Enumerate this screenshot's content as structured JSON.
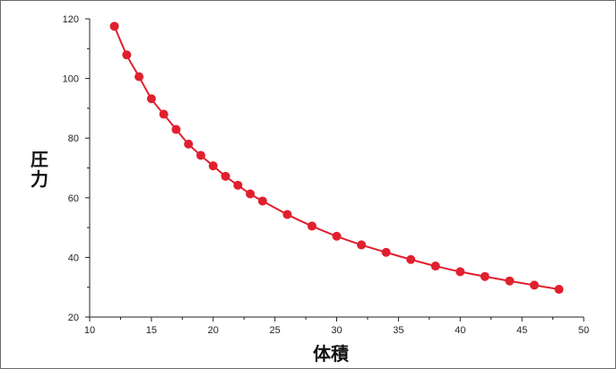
{
  "chart_data": {
    "type": "line",
    "title": "",
    "xlabel": "体積",
    "ylabel": "圧力",
    "xlim": [
      10,
      50
    ],
    "ylim": [
      20,
      120
    ],
    "x_ticks": [
      10,
      15,
      20,
      25,
      30,
      35,
      40,
      45,
      50
    ],
    "y_ticks": [
      20,
      40,
      60,
      80,
      100,
      120
    ],
    "grid": false,
    "legend": "none",
    "series": [
      {
        "color": "#e0202e",
        "markers": true,
        "x": [
          12,
          13,
          14,
          15,
          16,
          17,
          18,
          19,
          20,
          21,
          22,
          23,
          24,
          26,
          28,
          30,
          32,
          34,
          36,
          38,
          40,
          42,
          44,
          46,
          48
        ],
        "y": [
          117.5,
          107.9,
          100.6,
          93.2,
          88.0,
          82.9,
          78.0,
          74.2,
          70.7,
          67.2,
          64.2,
          61.3,
          58.9,
          54.4,
          50.5,
          47.1,
          44.2,
          41.7,
          39.3,
          37.1,
          35.2,
          33.6,
          32.1,
          30.7,
          29.3
        ]
      }
    ]
  }
}
